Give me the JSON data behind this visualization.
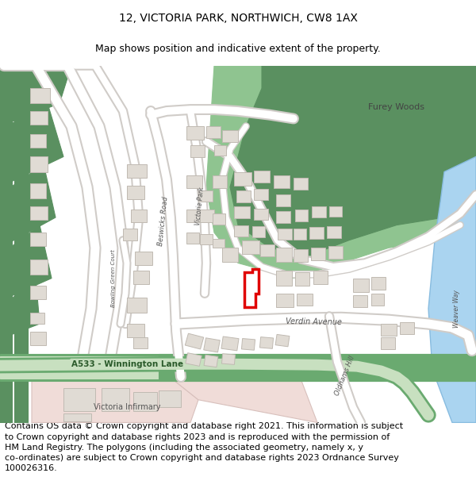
{
  "title": "12, VICTORIA PARK, NORTHWICH, CW8 1AX",
  "subtitle": "Map shows position and indicative extent of the property.",
  "footer": "Contains OS data © Crown copyright and database right 2021. This information is subject\nto Crown copyright and database rights 2023 and is reproduced with the permission of\nHM Land Registry. The polygons (including the associated geometry, namely x, y\nco-ordinates) are subject to Crown copyright and database rights 2023 Ordnance Survey\n100026316.",
  "title_fontsize": 10,
  "subtitle_fontsize": 9,
  "footer_fontsize": 8,
  "map_bg": "#f2ede8",
  "green_dark": "#5a9060",
  "green_light": "#8fc490",
  "green_mid": "#6aaa70",
  "building_color": "#e0dbd4",
  "building_edge": "#c0bab2",
  "highlight_color": "#e00000",
  "water_color": "#aad4f0",
  "road_white": "#ffffff",
  "road_edge": "#d0ccc8",
  "pink_area": "#f0dcd8",
  "road_green_fill": "#c8e0c0",
  "road_green_edge": "#88b878"
}
